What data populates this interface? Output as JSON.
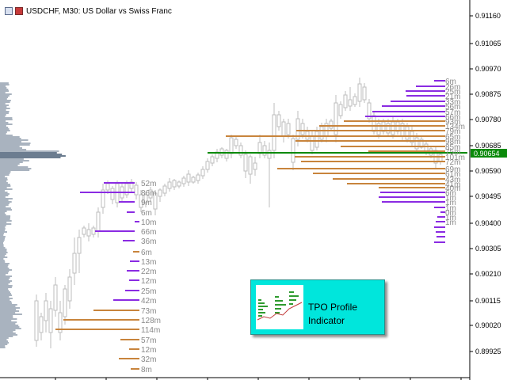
{
  "window": {
    "title": "USDCHF, M30:  US Dollar vs Swiss Franc"
  },
  "price_axis": {
    "labels": [
      "0.91160",
      "0.91065",
      "0.90970",
      "0.90875",
      "0.90780",
      "0.90685",
      "0.90590",
      "0.90495",
      "0.90400",
      "0.90305",
      "0.90210",
      "0.90115",
      "0.90020",
      "0.89925"
    ],
    "current_price": "0.90654"
  },
  "left_profile_labels": [
    "52m",
    "86m",
    "9m",
    "6m",
    "10m",
    "66m",
    "36m",
    "6m",
    "13m",
    "22m",
    "12m",
    "25m",
    "42m",
    "73m",
    "128m",
    "114m",
    "57m",
    "12m",
    "32m",
    "8m"
  ],
  "right_profile_labels": [
    "6m",
    "26m",
    "25m",
    "21m",
    "33m",
    "56m",
    "57m",
    "66m",
    "93m",
    "134m",
    "79m",
    "65m",
    "98m",
    "85m",
    "75m",
    "101m",
    "72m",
    "69m",
    "61m",
    "43m",
    "41m",
    "40m",
    "6m",
    "1m",
    "1m",
    "1m",
    "0m",
    "1m",
    "1m"
  ],
  "promo": {
    "line1": "TPO Profile",
    "line2": "Indicator"
  },
  "colors": {
    "orange": "#c8843c",
    "purple": "#8a2be2",
    "green": "#0a8a0a",
    "candle": "#c8c8c8",
    "profile": "#a9b3bf",
    "axis": "#000000"
  }
}
